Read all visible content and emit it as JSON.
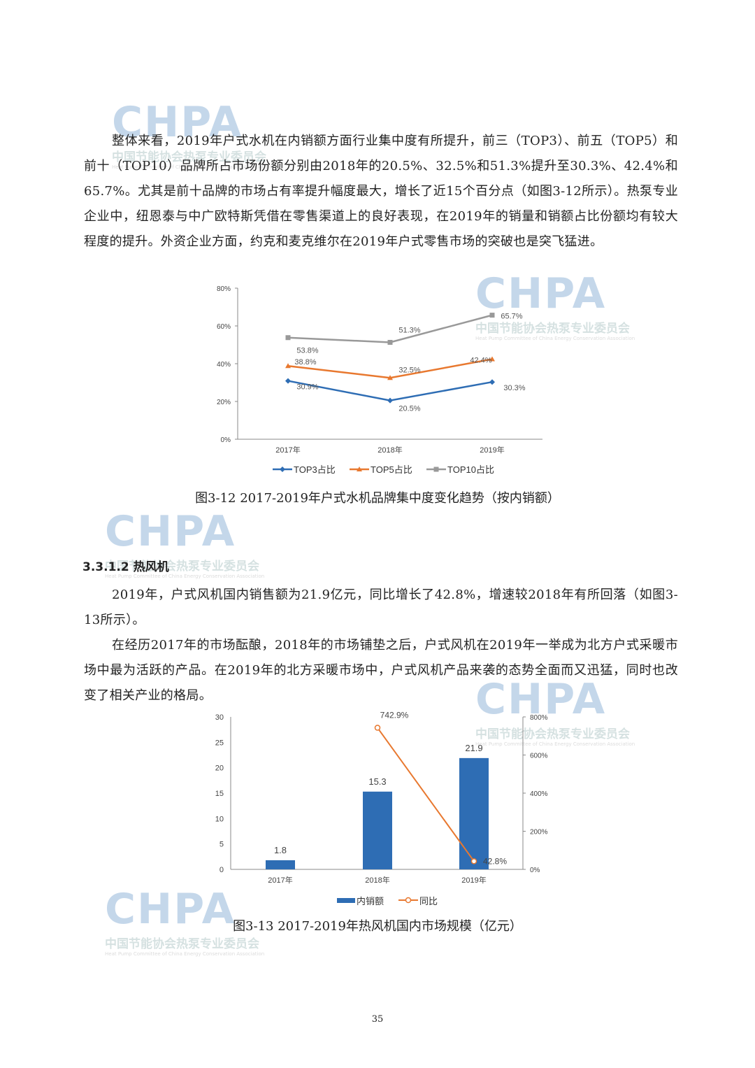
{
  "watermark": {
    "logo": "CHPA",
    "cn": "中国节能协会热泵专业委员会",
    "en": "Heat Pump Committee of China Energy Conservation Association"
  },
  "para1": "整体来看，2019年户式水机在内销额方面行业集中度有所提升，前三（TOP3）、前五（TOP5）和前十（TOP10）品牌所占市场份额分别由2018年的20.5%、32.5%和51.3%提升至30.3%、42.4%和65.7%。尤其是前十品牌的市场占有率提升幅度最大，增长了近15个百分点（如图3-12所示）。热泵专业企业中，纽恩泰与中广欧特斯凭借在零售渠道上的良好表现，在2019年的销量和销额占比份额均有较大程度的提升。外资企业方面，约克和麦克维尔在2019年户式零售市场的突破也是突飞猛进。",
  "caption1": "图3-12 2017-2019年户式水机品牌集中度变化趋势（按内销额）",
  "heading": "3.3.1.2  热风机",
  "para2": "2019年，户式风机国内销售额为21.9亿元，同比增长了42.8%，增速较2018年有所回落（如图3-13所示）。",
  "para3": "在经历2017年的市场酝酿，2018年的市场铺垫之后，户式风机在2019年一举成为北方户式采暖市场中最为活跃的产品。在2019年的北方采暖市场中，户式风机产品来袭的态势全面而又迅猛，同时也改变了相关产业的格局。",
  "caption2": "图3-13 2017-2019年热风机国内市场规模（亿元）",
  "page_number": "35",
  "chart_data": [
    {
      "type": "line",
      "categories": [
        "2017年",
        "2018年",
        "2019年"
      ],
      "ylim": [
        0,
        80
      ],
      "yticks": [
        "0%",
        "20%",
        "40%",
        "60%",
        "80%"
      ],
      "legend": "bottom",
      "grid": false,
      "series": [
        {
          "name": "TOP3占比",
          "values": [
            30.9,
            20.5,
            30.3
          ],
          "labels": [
            "30.9%",
            "20.5%",
            "30.3%"
          ],
          "color": "#2e6db4",
          "marker": "diamond"
        },
        {
          "name": "TOP5占比",
          "values": [
            38.8,
            32.5,
            42.4
          ],
          "labels": [
            "38.8%",
            "32.5%",
            "42.4%"
          ],
          "color": "#e8782f",
          "marker": "triangle"
        },
        {
          "name": "TOP10占比",
          "values": [
            53.8,
            51.3,
            65.7
          ],
          "labels": [
            "53.8%",
            "51.3%",
            "65.7%"
          ],
          "color": "#999999",
          "marker": "square"
        }
      ]
    },
    {
      "type": "bar",
      "categories": [
        "2017年",
        "2018年",
        "2019年"
      ],
      "ylim": [
        0,
        30
      ],
      "yticks": [
        "0",
        "5",
        "10",
        "15",
        "20",
        "25",
        "30"
      ],
      "y2lim": [
        0,
        800
      ],
      "y2ticks": [
        "0%",
        "200%",
        "400%",
        "600%",
        "800%"
      ],
      "legend": "bottom",
      "grid": false,
      "series": [
        {
          "name": "内销额",
          "type": "bar",
          "values": [
            1.8,
            15.3,
            21.9
          ],
          "labels": [
            "1.8",
            "15.3",
            "21.9"
          ],
          "color": "#2e6db4"
        },
        {
          "name": "同比",
          "type": "line",
          "axis": "right",
          "values": [
            null,
            742.9,
            42.8
          ],
          "labels": [
            "",
            "742.9%",
            "42.8%"
          ],
          "color": "#e8782f"
        }
      ]
    }
  ]
}
